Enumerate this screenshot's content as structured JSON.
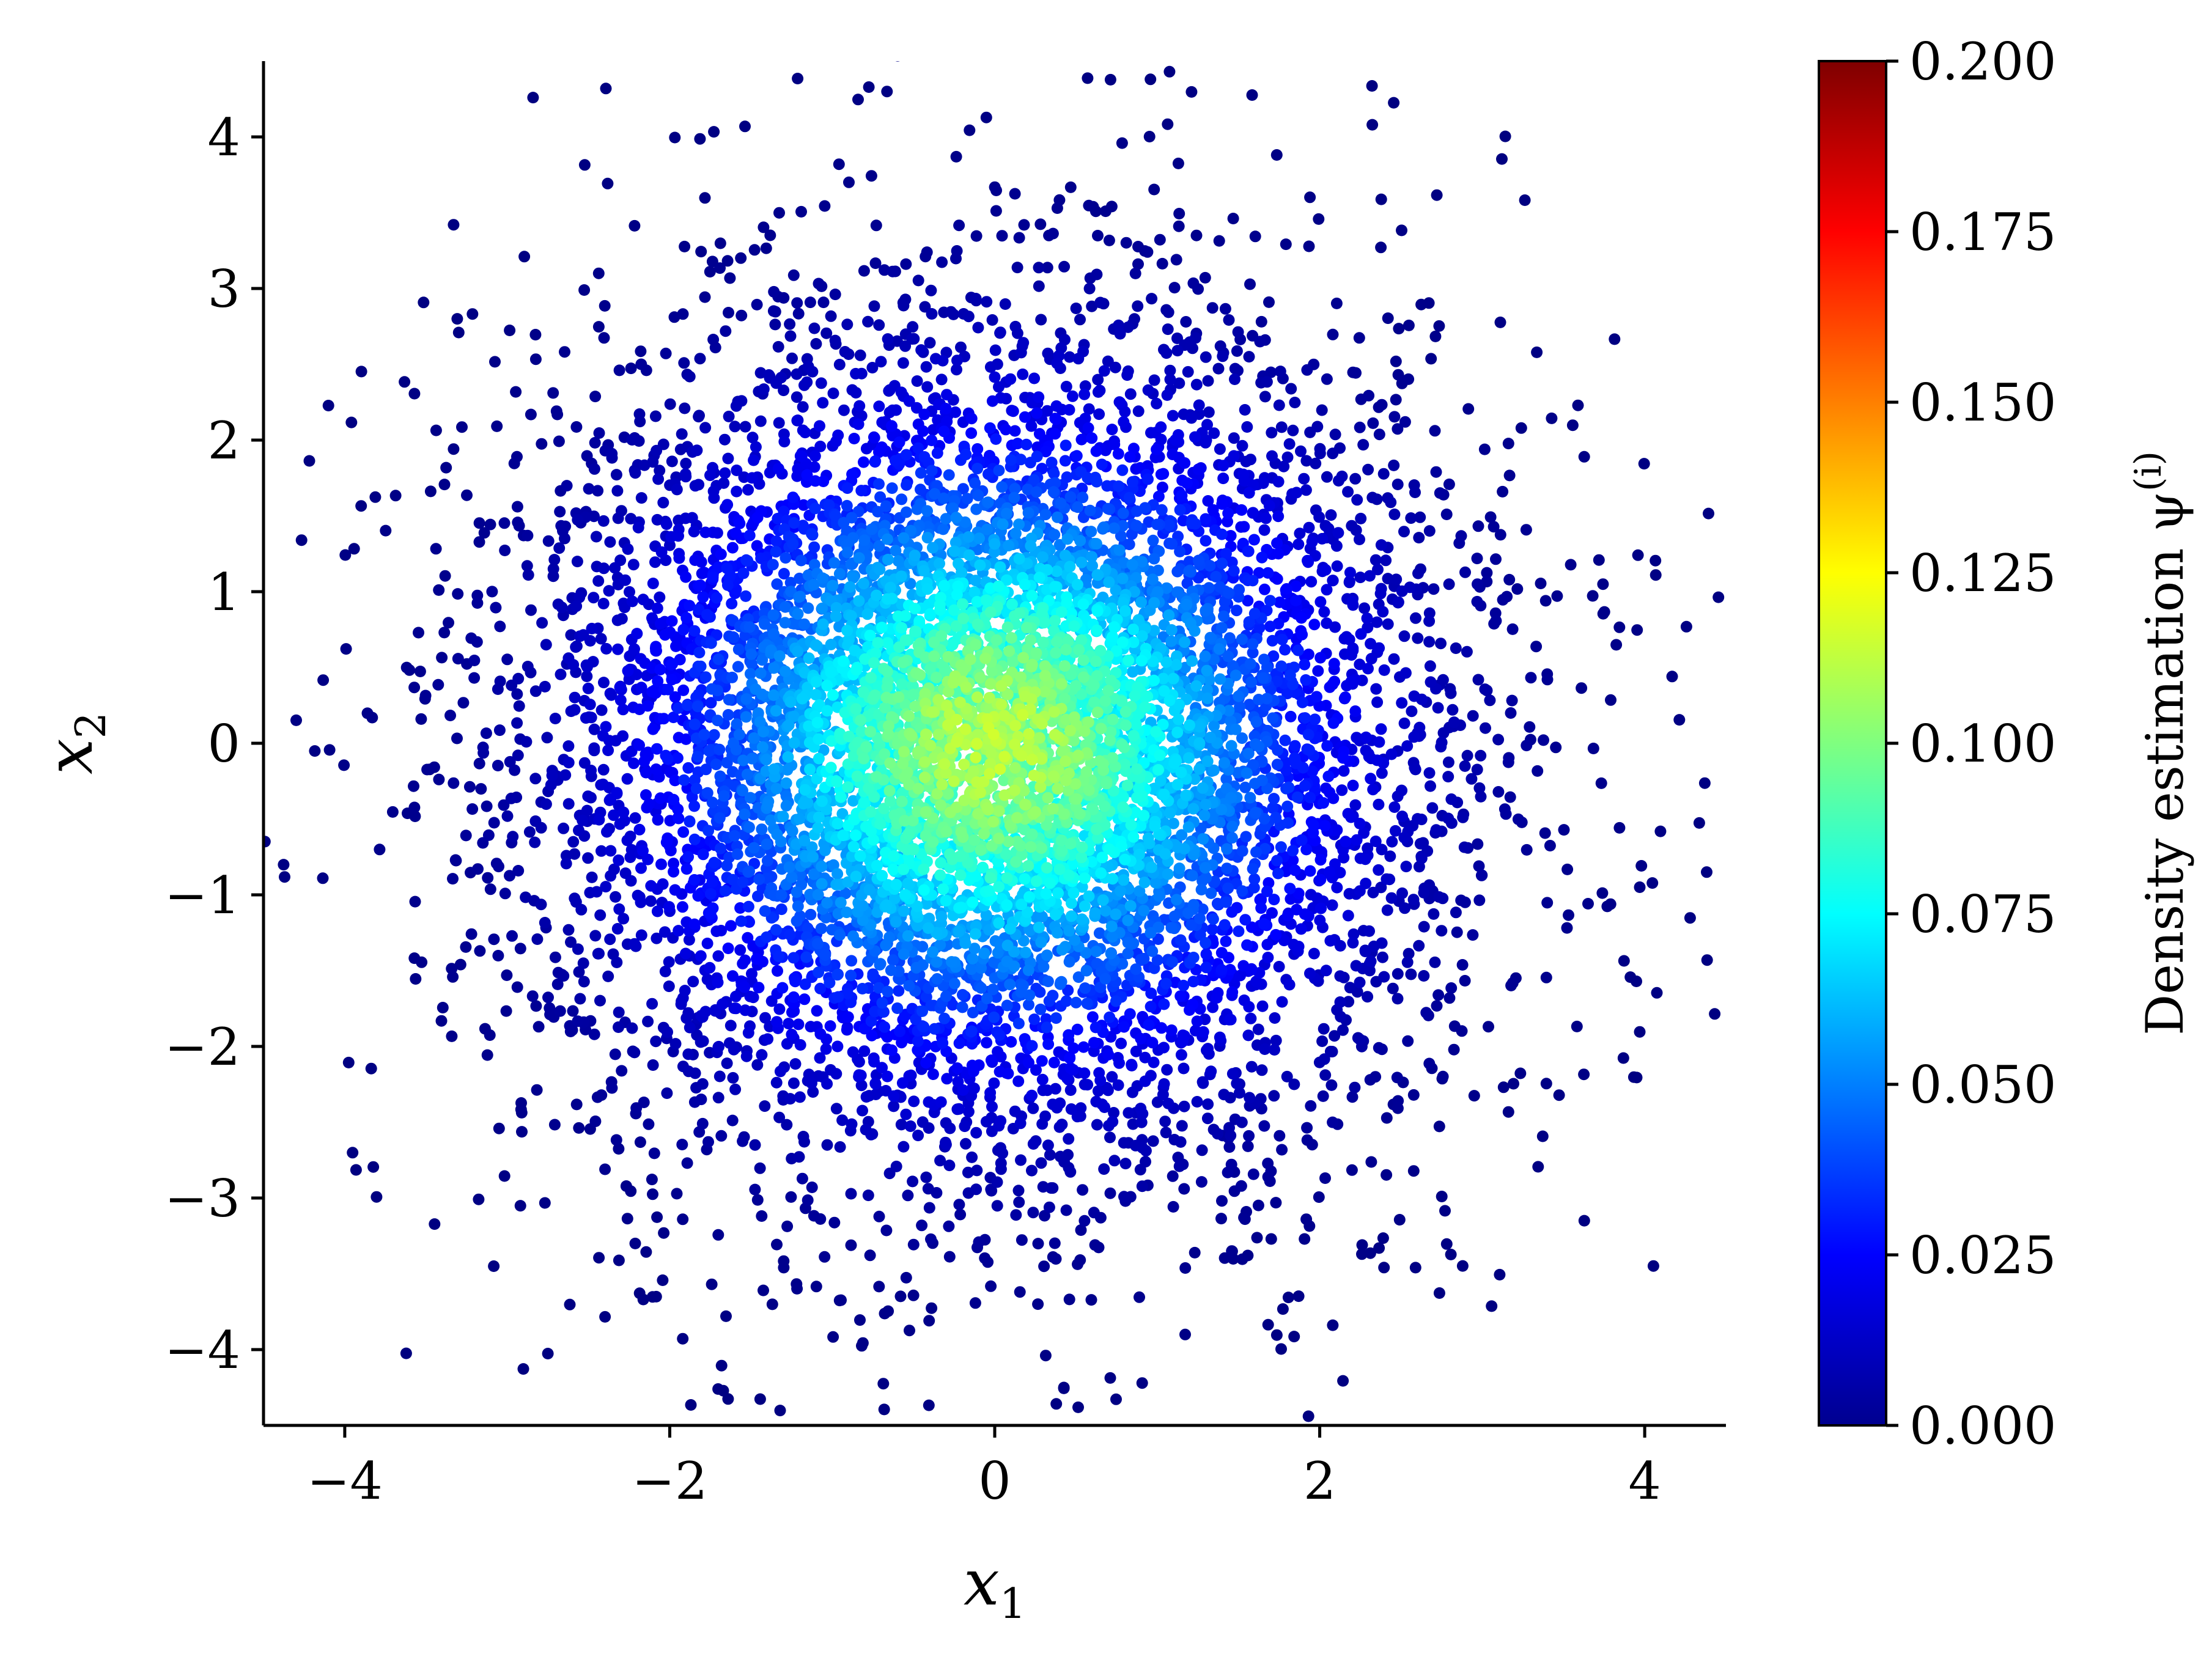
{
  "chart_data": {
    "type": "scatter",
    "xlabel": {
      "base": "x",
      "sub": "1"
    },
    "ylabel": {
      "base": "x",
      "sub": "2"
    },
    "xlim": [
      -4.5,
      4.5
    ],
    "ylim": [
      -4.5,
      4.5
    ],
    "xticks": [
      -4,
      -2,
      0,
      2,
      4
    ],
    "yticks": [
      -4,
      -3,
      -2,
      -1,
      0,
      1,
      2,
      3,
      4
    ],
    "xtick_labels": [
      "−4",
      "−2",
      "0",
      "2",
      "4"
    ],
    "ytick_labels": [
      "−4",
      "−3",
      "−2",
      "−1",
      "0",
      "1",
      "2",
      "3",
      "4"
    ],
    "grid": false,
    "colormap": "jet",
    "point_color_min": "#00008f",
    "point_color_max": "#7f0000",
    "distribution": {
      "kind": "gaussian-mixture",
      "n_points": 9000,
      "components": [
        {
          "weight": 0.75,
          "mean": [
            0,
            0
          ],
          "std": 1.5
        },
        {
          "weight": 0.25,
          "mean": [
            0,
            0
          ],
          "std": 0.9
        }
      ]
    },
    "colorbar": {
      "label": "Density estimation ψ",
      "label_sup": "(i)",
      "range": [
        0.0,
        0.2
      ],
      "ticks": [
        0.0,
        0.025,
        0.05,
        0.075,
        0.1,
        0.125,
        0.15,
        0.175,
        0.2
      ],
      "tick_labels": [
        "0.000",
        "0.025",
        "0.050",
        "0.075",
        "0.100",
        "0.125",
        "0.150",
        "0.175",
        "0.200"
      ]
    }
  }
}
